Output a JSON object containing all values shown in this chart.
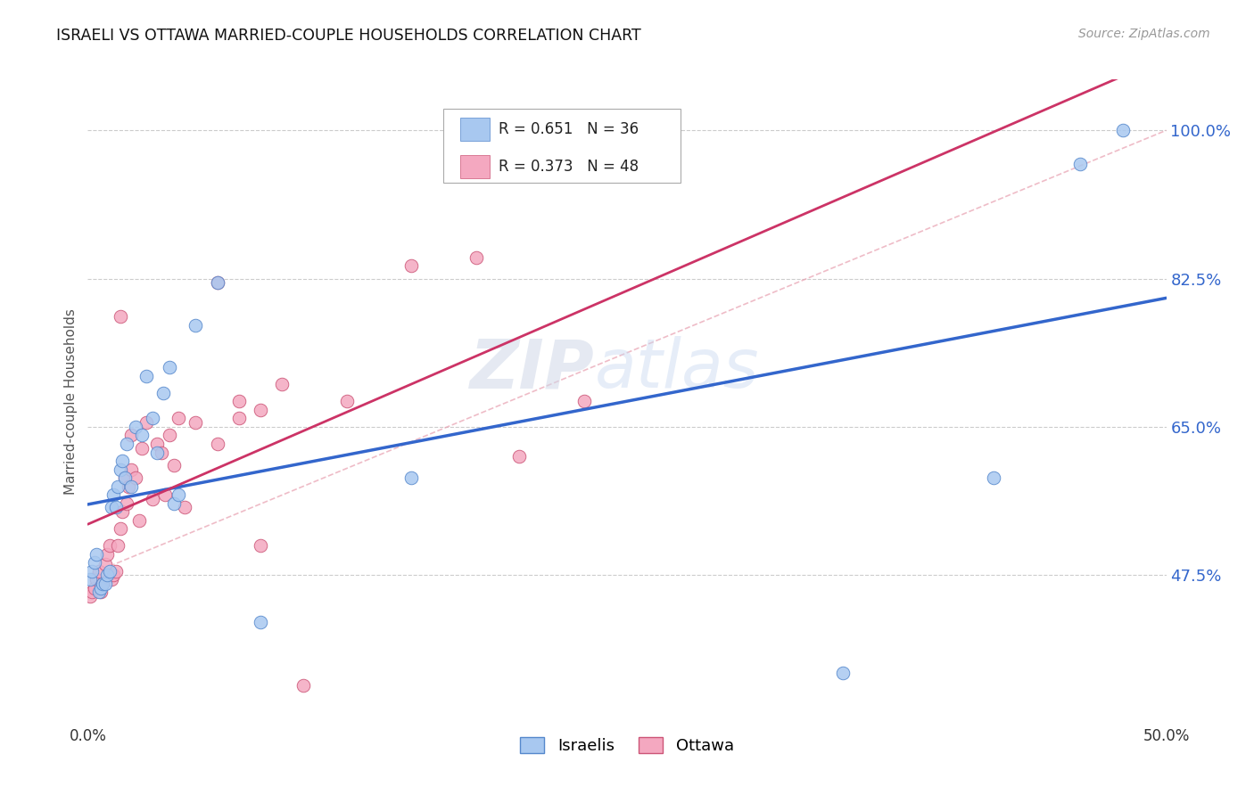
{
  "title": "ISRAELI VS OTTAWA MARRIED-COUPLE HOUSEHOLDS CORRELATION CHART",
  "source": "Source: ZipAtlas.com",
  "ylabel": "Married-couple Households",
  "ytick_labels": [
    "47.5%",
    "65.0%",
    "82.5%",
    "100.0%"
  ],
  "ytick_values": [
    0.475,
    0.65,
    0.825,
    1.0
  ],
  "xlim": [
    0.0,
    0.5
  ],
  "ylim": [
    0.3,
    1.06
  ],
  "watermark_zip": "ZIP",
  "watermark_atlas": "atlas",
  "legend_israeli_R": "0.651",
  "legend_israeli_N": "36",
  "legend_ottawa_R": "0.373",
  "legend_ottawa_N": "48",
  "israeli_color": "#A8C8F0",
  "ottawa_color": "#F4A8C0",
  "israeli_edge_color": "#5588CC",
  "ottawa_edge_color": "#CC5577",
  "israeli_line_color": "#3366CC",
  "ottawa_line_color": "#CC3366",
  "grid_color": "#CCCCCC",
  "ref_line_color": "#DDAAAA",
  "israeli_x": [
    0.001,
    0.002,
    0.003,
    0.004,
    0.005,
    0.006,
    0.007,
    0.008,
    0.009,
    0.01,
    0.011,
    0.012,
    0.013,
    0.014,
    0.015,
    0.016,
    0.017,
    0.018,
    0.02,
    0.022,
    0.025,
    0.027,
    0.03,
    0.032,
    0.035,
    0.038,
    0.04,
    0.042,
    0.05,
    0.06,
    0.08,
    0.15,
    0.35,
    0.42,
    0.46,
    0.48
  ],
  "israeli_y": [
    0.47,
    0.48,
    0.49,
    0.5,
    0.455,
    0.46,
    0.465,
    0.465,
    0.475,
    0.48,
    0.555,
    0.57,
    0.555,
    0.58,
    0.6,
    0.61,
    0.59,
    0.63,
    0.58,
    0.65,
    0.64,
    0.71,
    0.66,
    0.62,
    0.69,
    0.72,
    0.56,
    0.57,
    0.77,
    0.82,
    0.42,
    0.59,
    0.36,
    0.59,
    0.96,
    1.0
  ],
  "ottawa_x": [
    0.001,
    0.002,
    0.003,
    0.004,
    0.005,
    0.006,
    0.007,
    0.008,
    0.009,
    0.01,
    0.011,
    0.012,
    0.013,
    0.014,
    0.015,
    0.016,
    0.017,
    0.018,
    0.019,
    0.02,
    0.022,
    0.024,
    0.025,
    0.027,
    0.03,
    0.032,
    0.034,
    0.036,
    0.038,
    0.04,
    0.042,
    0.045,
    0.05,
    0.06,
    0.07,
    0.08,
    0.09,
    0.1,
    0.12,
    0.15,
    0.18,
    0.2,
    0.23,
    0.06,
    0.07,
    0.08,
    0.015,
    0.02
  ],
  "ottawa_y": [
    0.45,
    0.455,
    0.46,
    0.47,
    0.48,
    0.455,
    0.465,
    0.488,
    0.5,
    0.51,
    0.47,
    0.475,
    0.48,
    0.51,
    0.53,
    0.55,
    0.59,
    0.56,
    0.58,
    0.6,
    0.59,
    0.54,
    0.625,
    0.655,
    0.565,
    0.63,
    0.62,
    0.57,
    0.64,
    0.605,
    0.66,
    0.555,
    0.655,
    0.63,
    0.68,
    0.51,
    0.7,
    0.345,
    0.68,
    0.84,
    0.85,
    0.615,
    0.68,
    0.82,
    0.66,
    0.67,
    0.78,
    0.64
  ]
}
